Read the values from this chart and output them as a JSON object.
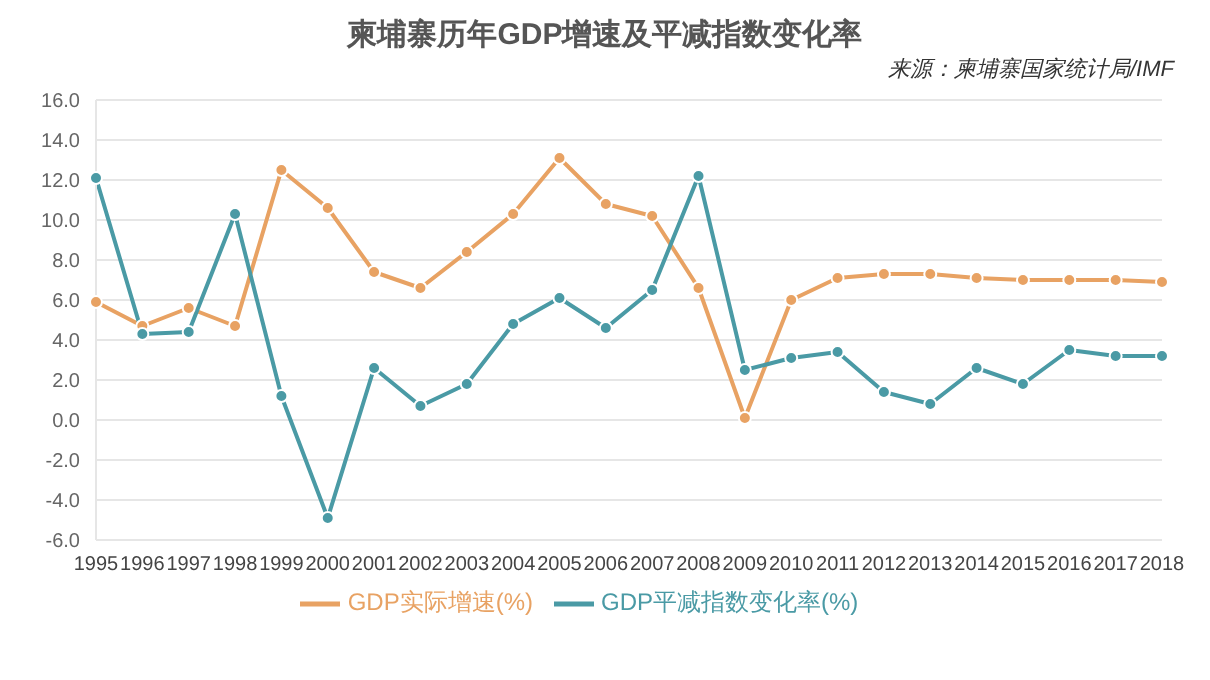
{
  "chart_data": {
    "type": "line",
    "title": "柬埔寨历年GDP增速及平减指数变化率",
    "annotations": [
      "来源：柬埔寨国家统计局/IMF"
    ],
    "categories": [
      "1995",
      "1996",
      "1997",
      "1998",
      "1999",
      "2000",
      "2001",
      "2002",
      "2003",
      "2004",
      "2005",
      "2006",
      "2007",
      "2008",
      "2009",
      "2010",
      "2011",
      "2012",
      "2013",
      "2014",
      "2015",
      "2016",
      "2017",
      "2018"
    ],
    "series": [
      {
        "name": "GDP实际增速(%)",
        "color": "#e8a263",
        "values": [
          5.9,
          4.7,
          5.6,
          4.7,
          12.5,
          10.6,
          7.4,
          6.6,
          8.4,
          10.3,
          13.1,
          10.8,
          10.2,
          6.6,
          0.1,
          6.0,
          7.1,
          7.3,
          7.3,
          7.1,
          7.0,
          7.0,
          7.0,
          6.9
        ]
      },
      {
        "name": "GDP平减指数变化率(%)",
        "color": "#4a9aa5",
        "values": [
          12.1,
          4.3,
          4.4,
          10.3,
          1.2,
          -4.9,
          2.6,
          0.7,
          1.8,
          4.8,
          6.1,
          4.6,
          6.5,
          12.2,
          2.5,
          3.1,
          3.4,
          1.4,
          0.8,
          2.6,
          1.8,
          3.5,
          3.2,
          3.2
        ]
      }
    ],
    "ylim": [
      -6,
      16
    ],
    "yticks": [
      {
        "value": -6,
        "label": "-6.0"
      },
      {
        "value": -4,
        "label": "-4.0"
      },
      {
        "value": -2,
        "label": "-2.0"
      },
      {
        "value": 0,
        "label": "0.0"
      },
      {
        "value": 2,
        "label": "2.0"
      },
      {
        "value": 4,
        "label": "4.0"
      },
      {
        "value": 6,
        "label": "6.0"
      },
      {
        "value": 8,
        "label": "8.0"
      },
      {
        "value": 10,
        "label": "10.0"
      },
      {
        "value": 12,
        "label": "12.0"
      },
      {
        "value": 14,
        "label": "14.0"
      },
      {
        "value": 16,
        "label": "16.0"
      }
    ],
    "grid": "y",
    "legend": "bottom",
    "marker": "circle",
    "line_style": "solid"
  }
}
